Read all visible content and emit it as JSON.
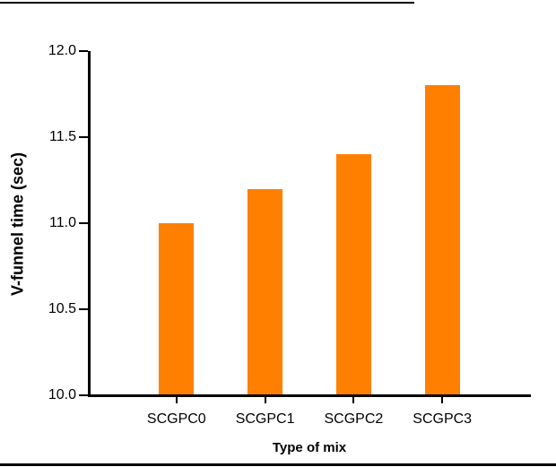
{
  "chart_data": {
    "type": "bar",
    "title": "",
    "categories": [
      "SCGPC0",
      "SCGPC1",
      "SCGPC2",
      "SCGPC3"
    ],
    "values": [
      11.0,
      11.2,
      11.4,
      11.8
    ],
    "xlabel": "Type of mix",
    "ylabel": "V-funnel time (sec)",
    "ylim": [
      10.0,
      12.0
    ],
    "ytick_step": 0.5,
    "ytick_labels": [
      "10.0",
      "10.5",
      "11.0",
      "11.5",
      "12.0"
    ],
    "bar_color": "#FF7F00",
    "axis_color": "#000000",
    "grid": false,
    "legend": false
  },
  "decorations": {
    "top_rule": true,
    "bottom_rule": true
  }
}
